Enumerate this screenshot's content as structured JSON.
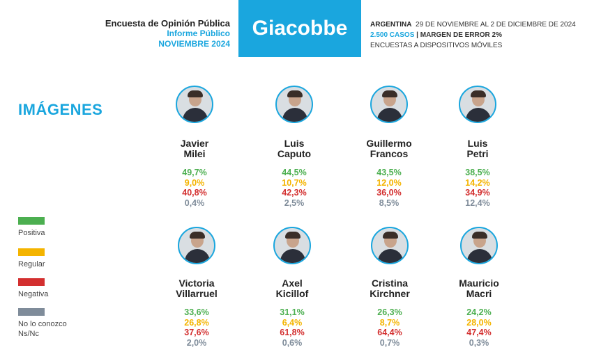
{
  "header": {
    "title": "Encuesta de Opinión Pública",
    "subtitle": "Informe Público",
    "date": "NOVIEMBRE 2024",
    "brand": "Giacobbe",
    "country": "ARGENTINA",
    "period": "29 DE NOVIEMBRE AL 2 DE DICIEMBRE DE 2024",
    "cases": "2.500 CASOS",
    "separator": "|",
    "margin": "MARGEN DE ERROR 2%",
    "method": "ENCUESTAS A DISPOSITIVOS MÓVILES"
  },
  "section_title": "IMÁGENES",
  "colors": {
    "accent": "#1aa6de",
    "positiva": "#4caf50",
    "regular": "#f4b400",
    "negativa": "#d32f2f",
    "ns": "#7f8c9a"
  },
  "legend": [
    {
      "label": "Positiva",
      "color": "#4caf50"
    },
    {
      "label": "Regular",
      "color": "#f4b400"
    },
    {
      "label": "Negativa",
      "color": "#d32f2f"
    },
    {
      "label": "No lo conozco",
      "label2": "Ns/Nc",
      "color": "#7f8c9a"
    }
  ],
  "people": [
    {
      "first": "Javier",
      "last": "Milei",
      "positiva": "49,7%",
      "regular": "9,0%",
      "negativa": "40,8%",
      "ns": "0,4%"
    },
    {
      "first": "Luis",
      "last": "Caputo",
      "positiva": "44,5%",
      "regular": "10,7%",
      "negativa": "42,3%",
      "ns": "2,5%"
    },
    {
      "first": "Guillermo",
      "last": "Francos",
      "positiva": "43,5%",
      "regular": "12,0%",
      "negativa": "36,0%",
      "ns": "8,5%"
    },
    {
      "first": "Luis",
      "last": "Petri",
      "positiva": "38,5%",
      "regular": "14,2%",
      "negativa": "34,9%",
      "ns": "12,4%"
    },
    {
      "first": "Victoria",
      "last": "Villarruel",
      "positiva": "33,6%",
      "regular": "26,8%",
      "negativa": "37,6%",
      "ns": "2,0%"
    },
    {
      "first": "Axel",
      "last": "Kicillof",
      "positiva": "31,1%",
      "regular": "6,4%",
      "negativa": "61,8%",
      "ns": "0,6%"
    },
    {
      "first": "Cristina",
      "last": "Kirchner",
      "positiva": "26,3%",
      "regular": "8,7%",
      "negativa": "64,4%",
      "ns": "0,7%"
    },
    {
      "first": "Mauricio",
      "last": "Macri",
      "positiva": "24,2%",
      "regular": "28,0%",
      "negativa": "47,4%",
      "ns": "0,3%"
    }
  ]
}
